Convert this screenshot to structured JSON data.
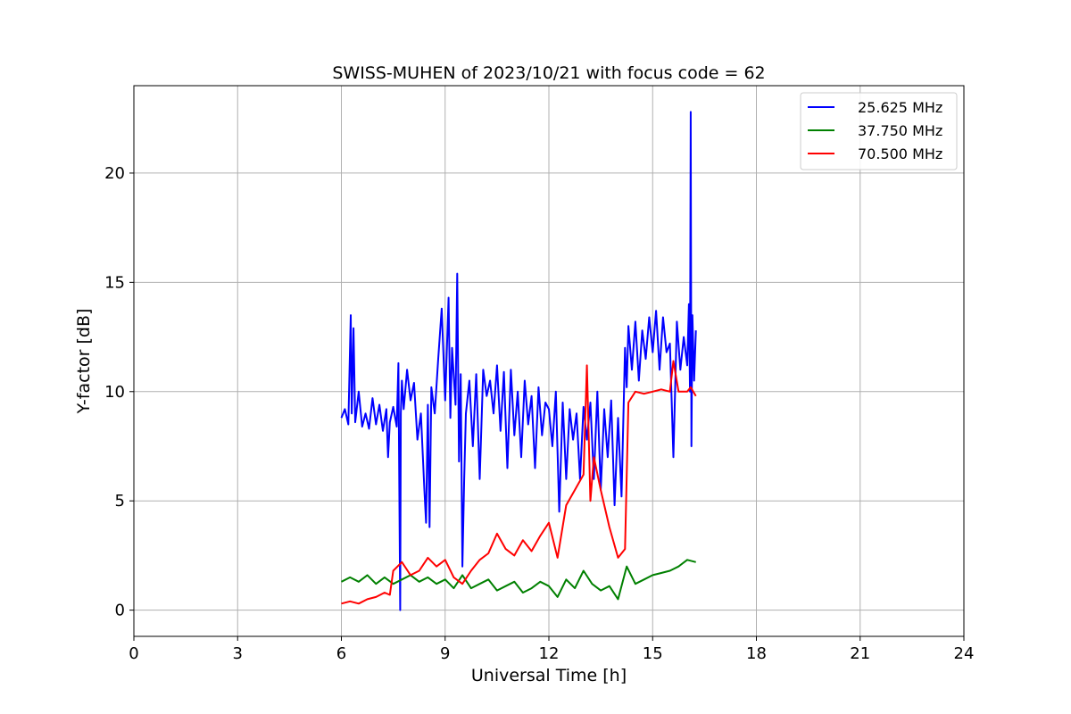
{
  "chart_data": {
    "type": "line",
    "title": "SWISS-MUHEN of 2023/10/21 with focus code = 62",
    "xlabel": "Universal Time [h]",
    "ylabel": "Y-factor [dB]",
    "xlim": [
      0,
      24
    ],
    "ylim": [
      -1.2,
      24
    ],
    "xticks": [
      0,
      3,
      6,
      9,
      12,
      15,
      18,
      21,
      24
    ],
    "yticks": [
      0,
      5,
      10,
      15,
      20
    ],
    "grid": true,
    "legend_position": "top-right",
    "series": [
      {
        "name": "25.625 MHz",
        "color": "#0000ff",
        "x": [
          6.0,
          6.1,
          6.2,
          6.27,
          6.3,
          6.35,
          6.4,
          6.5,
          6.6,
          6.7,
          6.8,
          6.9,
          7.0,
          7.1,
          7.2,
          7.3,
          7.35,
          7.4,
          7.5,
          7.6,
          7.65,
          7.7,
          7.72,
          7.75,
          7.8,
          7.9,
          8.0,
          8.1,
          8.2,
          8.3,
          8.4,
          8.45,
          8.5,
          8.55,
          8.6,
          8.7,
          8.8,
          8.9,
          9.0,
          9.1,
          9.15,
          9.2,
          9.3,
          9.35,
          9.4,
          9.45,
          9.5,
          9.55,
          9.6,
          9.7,
          9.8,
          9.9,
          10.0,
          10.1,
          10.2,
          10.3,
          10.4,
          10.5,
          10.6,
          10.7,
          10.8,
          10.9,
          11.0,
          11.1,
          11.2,
          11.3,
          11.4,
          11.5,
          11.6,
          11.7,
          11.8,
          11.9,
          12.0,
          12.1,
          12.2,
          12.3,
          12.4,
          12.5,
          12.6,
          12.7,
          12.8,
          12.9,
          13.0,
          13.1,
          13.2,
          13.3,
          13.4,
          13.5,
          13.6,
          13.7,
          13.8,
          13.9,
          14.0,
          14.1,
          14.2,
          14.25,
          14.3,
          14.4,
          14.5,
          14.6,
          14.7,
          14.8,
          14.9,
          15.0,
          15.1,
          15.2,
          15.3,
          15.4,
          15.5,
          15.6,
          15.7,
          15.8,
          15.9,
          16.0,
          16.05,
          16.08,
          16.1,
          16.12,
          16.15,
          16.2,
          16.25
        ],
        "y": [
          8.8,
          9.2,
          8.5,
          13.5,
          9.0,
          12.9,
          8.6,
          10.0,
          8.4,
          9.0,
          8.3,
          9.7,
          8.5,
          9.4,
          8.2,
          9.2,
          7.0,
          8.6,
          9.3,
          8.4,
          11.3,
          0.0,
          9.0,
          10.5,
          9.2,
          11.0,
          9.6,
          10.4,
          7.8,
          9.0,
          5.5,
          4.0,
          9.4,
          3.8,
          10.2,
          9.0,
          11.5,
          13.8,
          9.6,
          14.3,
          8.8,
          12.0,
          9.4,
          15.4,
          6.8,
          10.8,
          2.0,
          6.0,
          9.0,
          10.5,
          7.5,
          10.8,
          6.0,
          11.0,
          9.8,
          10.5,
          9.0,
          11.2,
          8.2,
          10.9,
          6.5,
          11.0,
          8.0,
          10.0,
          7.0,
          10.5,
          8.5,
          9.8,
          6.5,
          10.2,
          8.0,
          9.5,
          9.2,
          7.5,
          10.0,
          4.5,
          9.5,
          6.0,
          9.2,
          7.8,
          9.0,
          6.0,
          9.3,
          7.8,
          9.5,
          6.0,
          10.0,
          5.5,
          9.2,
          7.0,
          9.6,
          4.8,
          8.8,
          5.2,
          12.0,
          10.2,
          13.0,
          11.0,
          13.2,
          10.5,
          12.8,
          11.5,
          13.4,
          11.8,
          13.7,
          11.0,
          13.4,
          11.8,
          12.2,
          7.0,
          13.2,
          11.0,
          12.5,
          11.2,
          14.0,
          10.0,
          22.8,
          7.5,
          13.5,
          10.5,
          12.8
        ]
      },
      {
        "name": "37.750 MHz",
        "color": "#008000",
        "x": [
          6.0,
          6.25,
          6.5,
          6.75,
          7.0,
          7.25,
          7.5,
          7.75,
          8.0,
          8.25,
          8.5,
          8.75,
          9.0,
          9.25,
          9.5,
          9.75,
          10.0,
          10.25,
          10.5,
          10.75,
          11.0,
          11.25,
          11.5,
          11.75,
          12.0,
          12.25,
          12.5,
          12.75,
          13.0,
          13.25,
          13.5,
          13.75,
          14.0,
          14.25,
          14.5,
          14.75,
          15.0,
          15.25,
          15.5,
          15.75,
          16.0,
          16.25
        ],
        "y": [
          1.3,
          1.5,
          1.3,
          1.6,
          1.2,
          1.5,
          1.2,
          1.4,
          1.6,
          1.3,
          1.5,
          1.2,
          1.4,
          1.0,
          1.6,
          1.0,
          1.2,
          1.4,
          0.9,
          1.1,
          1.3,
          0.8,
          1.0,
          1.3,
          1.1,
          0.6,
          1.4,
          1.0,
          1.8,
          1.2,
          0.9,
          1.1,
          0.5,
          2.0,
          1.2,
          1.4,
          1.6,
          1.7,
          1.8,
          2.0,
          2.3,
          2.2
        ]
      },
      {
        "name": "70.500 MHz",
        "color": "#ff0000",
        "x": [
          6.0,
          6.25,
          6.5,
          6.75,
          7.0,
          7.25,
          7.4,
          7.5,
          7.75,
          8.0,
          8.25,
          8.5,
          8.75,
          9.0,
          9.25,
          9.5,
          9.75,
          10.0,
          10.25,
          10.5,
          10.75,
          11.0,
          11.25,
          11.5,
          11.75,
          12.0,
          12.25,
          12.5,
          12.75,
          13.0,
          13.1,
          13.2,
          13.3,
          13.5,
          13.75,
          14.0,
          14.2,
          14.3,
          14.5,
          14.75,
          15.0,
          15.25,
          15.5,
          15.6,
          15.75,
          16.0,
          16.1,
          16.25
        ],
        "y": [
          0.3,
          0.4,
          0.3,
          0.5,
          0.6,
          0.8,
          0.7,
          1.8,
          2.2,
          1.6,
          1.8,
          2.4,
          2.0,
          2.3,
          1.5,
          1.2,
          1.8,
          2.3,
          2.6,
          3.5,
          2.8,
          2.5,
          3.2,
          2.7,
          3.4,
          4.0,
          2.4,
          4.8,
          5.5,
          6.2,
          11.2,
          5.0,
          7.0,
          5.5,
          3.8,
          2.4,
          2.8,
          9.5,
          10.0,
          9.9,
          10.0,
          10.1,
          10.0,
          11.4,
          10.0,
          10.0,
          10.2,
          9.8
        ]
      }
    ]
  }
}
